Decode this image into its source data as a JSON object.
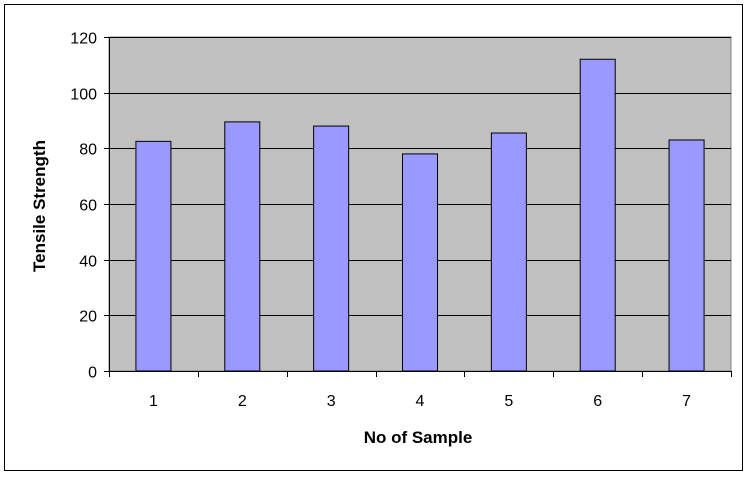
{
  "chart_data": {
    "type": "bar",
    "categories": [
      "1",
      "2",
      "3",
      "4",
      "5",
      "6",
      "7"
    ],
    "values": [
      82.5,
      89.5,
      88,
      78,
      85.5,
      112,
      83
    ],
    "title": "",
    "xlabel": "No of Sample",
    "ylabel": "Tensile Strength",
    "ylim": [
      0,
      120
    ],
    "yticks": [
      0,
      20,
      40,
      60,
      80,
      100,
      120
    ],
    "grid": true,
    "legend": "none",
    "colors": {
      "bar_fill": "#9999ff",
      "bar_stroke": "#000000",
      "plot_background": "#c0c0c0",
      "gridline": "#000000"
    }
  }
}
